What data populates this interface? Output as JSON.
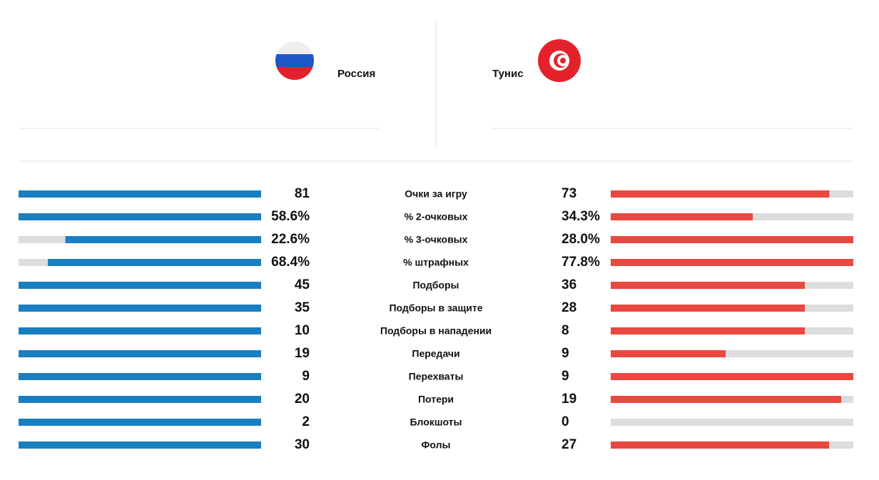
{
  "teams": {
    "home": "Россия",
    "away": "Тунис"
  },
  "rows": [
    {
      "label": "Очки за игру",
      "home": 81,
      "away": 73
    },
    {
      "label": "% 2-очковых",
      "home": {
        "value": 58.6,
        "label": "58.6%"
      },
      "away": {
        "value": 34.3,
        "label": "34.3%"
      }
    },
    {
      "label": "% 3-очковых",
      "home": {
        "value": 22.6,
        "label": "22.6%"
      },
      "away": {
        "value": 28.0,
        "label": "28.0%"
      }
    },
    {
      "label": "% штрафных",
      "home": {
        "value": 68.4,
        "label": "68.4%"
      },
      "away": {
        "value": 77.8,
        "label": "77.8%"
      }
    },
    {
      "label": "Подборы",
      "home": 45,
      "away": 36
    },
    {
      "label": "Подборы в защите",
      "home": 35,
      "away": 28
    },
    {
      "label": "Подборы в нападении",
      "home": 10,
      "away": 8
    },
    {
      "label": "Передачи",
      "home": 19,
      "away": 9
    },
    {
      "label": "Перехваты",
      "home": 9,
      "away": 9
    },
    {
      "label": "Потери",
      "home": 20,
      "away": 19
    },
    {
      "label": "Блокшоты",
      "home": 2,
      "away": 0
    },
    {
      "label": "Фолы",
      "home": 30,
      "away": 27
    }
  ]
}
